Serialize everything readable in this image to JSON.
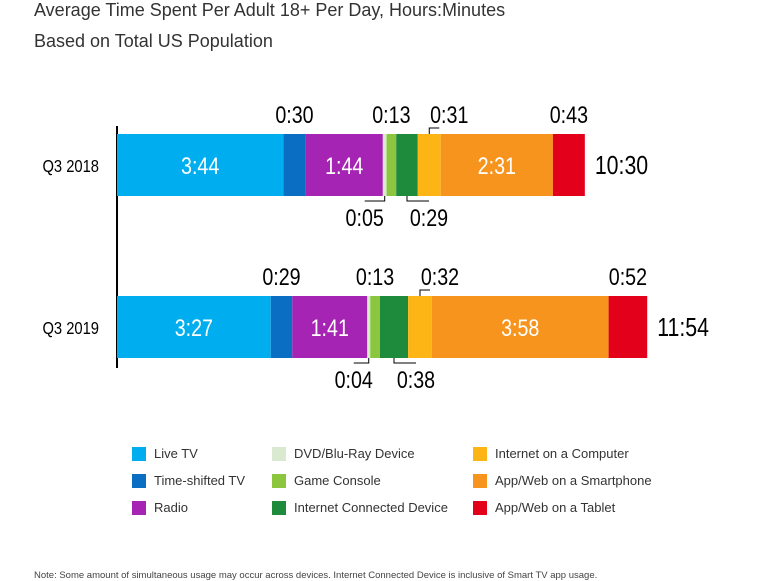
{
  "header": {
    "title": "Average Time Spent Per Adult 18+ Per Day, Hours:Minutes",
    "subtitle": "Based on Total US Population"
  },
  "chart_data": {
    "type": "bar",
    "orientation": "horizontal",
    "stacked": true,
    "categories": [
      "Q3 2018",
      "Q3 2019"
    ],
    "totals": [
      "10:30",
      "11:54"
    ],
    "series": [
      {
        "name": "Live TV",
        "color": "#00aeef",
        "values": [
          "3:44",
          "3:27"
        ]
      },
      {
        "name": "Time-shifted TV",
        "color": "#0a6fc2",
        "values": [
          "0:30",
          "0:29"
        ]
      },
      {
        "name": "Radio",
        "color": "#a624b3",
        "values": [
          "1:44",
          "1:41"
        ]
      },
      {
        "name": "DVD/Blu-Ray Device",
        "color": "#d9ead0",
        "values": [
          "0:05",
          "0:04"
        ]
      },
      {
        "name": "Game Console",
        "color": "#8cc63f",
        "values": [
          "0:13",
          "0:13"
        ]
      },
      {
        "name": "Internet Connected Device",
        "color": "#1e8a3c",
        "values": [
          "0:29",
          "0:38"
        ]
      },
      {
        "name": "Internet on a Computer",
        "color": "#fdb515",
        "values": [
          "0:31",
          "0:32"
        ]
      },
      {
        "name": "App/Web on a Smartphone",
        "color": "#f7941d",
        "values": [
          "2:31",
          "3:58"
        ]
      },
      {
        "name": "App/Web on a Tablet",
        "color": "#e2001a",
        "values": [
          "0:43",
          "0:52"
        ]
      }
    ],
    "legend_position": "bottom",
    "grid": false
  },
  "note": "Note: Some amount of simultaneous usage may occur across devices. Internet Connected Device is inclusive of Smart TV app usage."
}
